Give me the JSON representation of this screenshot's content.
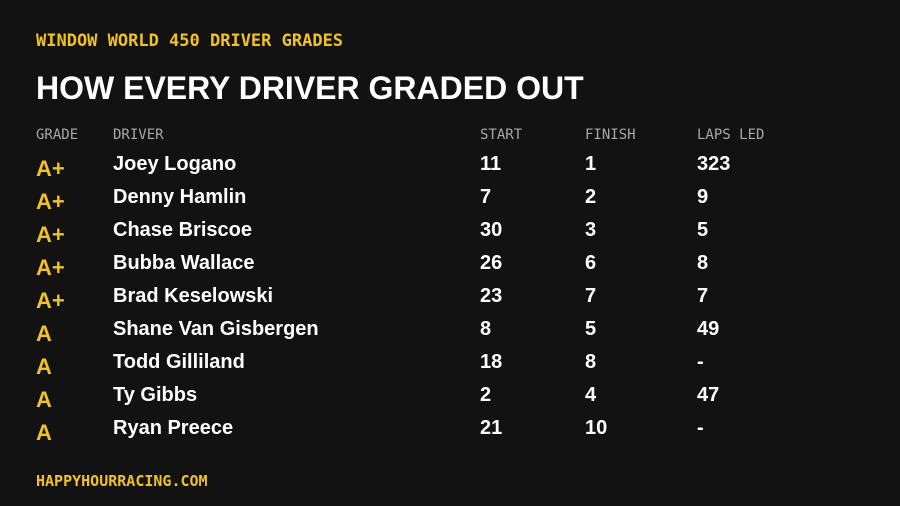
{
  "header": {
    "kicker": "WINDOW WORLD 450 DRIVER GRADES",
    "title": "HOW EVERY DRIVER GRADED OUT"
  },
  "table": {
    "columns": [
      "GRADE",
      "DRIVER",
      "START",
      "FINISH",
      "LAPS LED"
    ],
    "rows": [
      [
        "A+",
        "Joey Logano",
        11,
        1,
        323
      ],
      [
        "A+",
        "Denny Hamlin",
        7,
        2,
        9
      ],
      [
        "A+",
        "Chase Briscoe",
        30,
        3,
        5
      ],
      [
        "A+",
        "Bubba Wallace",
        26,
        6,
        8
      ],
      [
        "A+",
        "Brad Keselowski",
        23,
        7,
        7
      ],
      [
        "A",
        "Shane Van Gisbergen",
        8,
        5,
        49
      ],
      [
        "A",
        "Todd Gilliland",
        18,
        8,
        "-"
      ],
      [
        "A",
        "Ty Gibbs",
        2,
        4,
        47
      ],
      [
        "A",
        "Ryan Preece",
        21,
        10,
        "-"
      ]
    ]
  },
  "footer": {
    "site": "HAPPYHOURRACING.COM"
  }
}
